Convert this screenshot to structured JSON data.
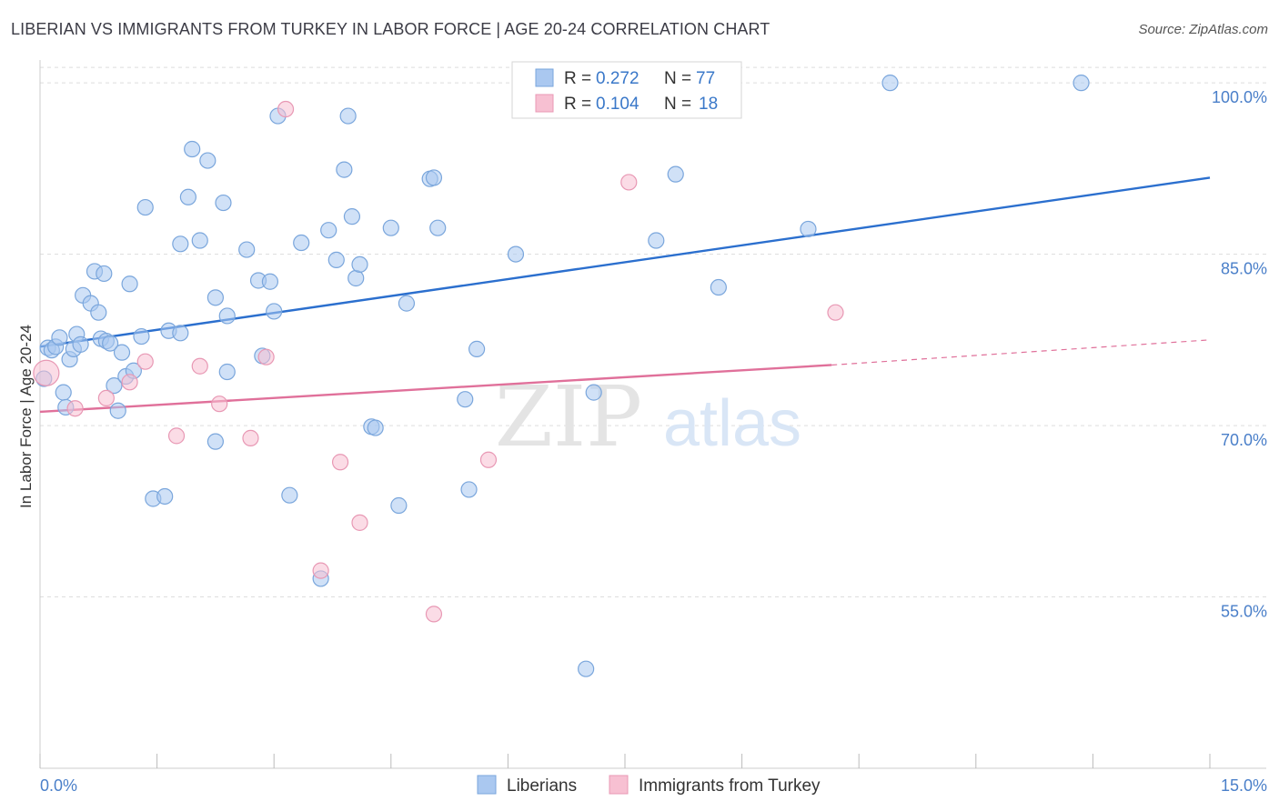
{
  "title": "LIBERIAN VS IMMIGRANTS FROM TURKEY IN LABOR FORCE | AGE 20-24 CORRELATION CHART",
  "source": "Source: ZipAtlas.com",
  "watermark": {
    "zip": "ZIP",
    "atlas": "atlas"
  },
  "colors": {
    "blue_fill": "#aac8f0",
    "blue_stroke": "#7aa6dc",
    "blue_line": "#2b6fce",
    "pink_fill": "#f7c0d2",
    "pink_stroke": "#e898b4",
    "pink_line": "#e0709a",
    "grid": "#dddddd",
    "tick_text": "#4a7fc9"
  },
  "legend": {
    "row1": {
      "r_label": "R =",
      "r_value": "0.272",
      "n_label": "N =",
      "n_value": "77"
    },
    "row2": {
      "r_label": "R =",
      "r_value": "0.104",
      "n_label": "N =",
      "n_value": "18"
    }
  },
  "chart_data": {
    "type": "scatter",
    "title": "LIBERIAN VS IMMIGRANTS FROM TURKEY IN LABOR FORCE | AGE 20-24 CORRELATION CHART",
    "xlabel": "",
    "ylabel": "In Labor Force | Age 20-24",
    "xlim": [
      0,
      15
    ],
    "ylim": [
      40,
      102
    ],
    "x_tick_labels": [
      "0.0%",
      "15.0%"
    ],
    "y_ticks": [
      55,
      70,
      85,
      100
    ],
    "y_tick_labels": [
      "55.0%",
      "70.0%",
      "85.0%",
      "100.0%"
    ],
    "grid": true,
    "legend_position": "top-center",
    "series": [
      {
        "name": "Liberians",
        "color": "#aac8f0",
        "r": 0.272,
        "n": 77,
        "trend": {
          "x": [
            0,
            15
          ],
          "y": [
            76.9,
            91.7
          ]
        },
        "points": [
          [
            0.05,
            74.1
          ],
          [
            0.1,
            76.8
          ],
          [
            0.15,
            76.6
          ],
          [
            0.2,
            76.9
          ],
          [
            0.25,
            77.7
          ],
          [
            0.3,
            72.9
          ],
          [
            0.33,
            71.6
          ],
          [
            0.38,
            75.8
          ],
          [
            0.43,
            76.7
          ],
          [
            0.47,
            78.0
          ],
          [
            0.52,
            77.1
          ],
          [
            0.55,
            81.4
          ],
          [
            0.65,
            80.7
          ],
          [
            0.7,
            83.5
          ],
          [
            0.75,
            79.9
          ],
          [
            0.78,
            77.6
          ],
          [
            0.82,
            83.3
          ],
          [
            0.85,
            77.4
          ],
          [
            0.9,
            77.2
          ],
          [
            0.95,
            73.5
          ],
          [
            1.0,
            71.3
          ],
          [
            1.05,
            76.4
          ],
          [
            1.1,
            74.3
          ],
          [
            1.15,
            82.4
          ],
          [
            1.2,
            74.8
          ],
          [
            1.3,
            77.8
          ],
          [
            1.45,
            63.6
          ],
          [
            1.35,
            89.1
          ],
          [
            1.6,
            63.8
          ],
          [
            1.65,
            78.3
          ],
          [
            1.8,
            78.1
          ],
          [
            1.8,
            85.9
          ],
          [
            1.9,
            90.0
          ],
          [
            1.95,
            94.2
          ],
          [
            2.05,
            86.2
          ],
          [
            2.15,
            93.2
          ],
          [
            2.25,
            81.2
          ],
          [
            2.25,
            68.6
          ],
          [
            2.35,
            89.5
          ],
          [
            2.4,
            79.6
          ],
          [
            2.4,
            74.7
          ],
          [
            2.65,
            85.4
          ],
          [
            2.8,
            82.7
          ],
          [
            2.85,
            76.1
          ],
          [
            2.95,
            82.6
          ],
          [
            3.0,
            80.0
          ],
          [
            3.05,
            97.1
          ],
          [
            3.2,
            63.9
          ],
          [
            3.35,
            86.0
          ],
          [
            3.6,
            56.6
          ],
          [
            3.7,
            87.1
          ],
          [
            3.8,
            84.5
          ],
          [
            3.9,
            92.4
          ],
          [
            3.95,
            97.1
          ],
          [
            4.0,
            88.3
          ],
          [
            4.05,
            82.9
          ],
          [
            4.1,
            84.1
          ],
          [
            4.25,
            69.9
          ],
          [
            4.3,
            69.8
          ],
          [
            4.5,
            87.3
          ],
          [
            4.6,
            63.0
          ],
          [
            4.7,
            80.7
          ],
          [
            5.0,
            91.6
          ],
          [
            5.05,
            91.7
          ],
          [
            5.1,
            87.3
          ],
          [
            5.45,
            72.3
          ],
          [
            5.5,
            64.4
          ],
          [
            5.6,
            76.7
          ],
          [
            6.1,
            85.0
          ],
          [
            7.0,
            48.7
          ],
          [
            7.1,
            72.9
          ],
          [
            7.9,
            86.2
          ],
          [
            8.15,
            92.0
          ],
          [
            8.7,
            82.1
          ],
          [
            9.85,
            87.2
          ],
          [
            10.9,
            100.0
          ],
          [
            13.35,
            100.0
          ]
        ]
      },
      {
        "name": "Immigrants from Turkey",
        "color": "#f7c0d2",
        "r": 0.104,
        "n": 18,
        "trend": {
          "x": [
            0,
            10.15
          ],
          "y": [
            71.2,
            75.3
          ]
        },
        "trend_dashed": {
          "x": [
            10.15,
            15
          ],
          "y": [
            75.3,
            77.5
          ]
        },
        "points": [
          [
            0.08,
            74.6
          ],
          [
            0.45,
            71.5
          ],
          [
            0.85,
            72.4
          ],
          [
            1.15,
            73.8
          ],
          [
            1.35,
            75.6
          ],
          [
            1.75,
            69.1
          ],
          [
            2.05,
            75.2
          ],
          [
            2.3,
            71.9
          ],
          [
            2.7,
            68.9
          ],
          [
            2.9,
            76.0
          ],
          [
            3.15,
            97.7
          ],
          [
            3.85,
            66.8
          ],
          [
            4.1,
            61.5
          ],
          [
            3.6,
            57.3
          ],
          [
            5.05,
            53.5
          ],
          [
            5.75,
            67.0
          ],
          [
            7.55,
            91.3
          ],
          [
            10.2,
            79.9
          ]
        ]
      }
    ]
  }
}
